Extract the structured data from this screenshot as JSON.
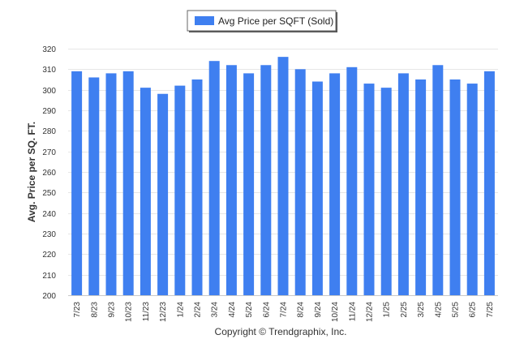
{
  "chart_data": {
    "type": "bar",
    "title": "",
    "xlabel": "",
    "ylabel": "Avg. Price per SQ. FT.",
    "ylim": [
      200,
      320
    ],
    "ytick_step": 10,
    "grid": true,
    "legend_position": "top-center",
    "bar_color": "#3f7ff0",
    "credit": "Copyright © Trendgraphix, Inc.",
    "categories": [
      "7/23",
      "8/23",
      "9/23",
      "10/23",
      "11/23",
      "12/23",
      "1/24",
      "2/24",
      "3/24",
      "4/24",
      "5/24",
      "6/24",
      "7/24",
      "8/24",
      "9/24",
      "10/24",
      "11/24",
      "12/24",
      "1/25",
      "2/25",
      "3/25",
      "4/25",
      "5/25",
      "6/25",
      "7/25"
    ],
    "series": [
      {
        "name": "Avg Price per SQFT (Sold)",
        "values": [
          309,
          306,
          308,
          309,
          301,
          298,
          302,
          305,
          314,
          312,
          308,
          312,
          316,
          310,
          304,
          308,
          311,
          303,
          301,
          308,
          305,
          312,
          305,
          303,
          309
        ]
      }
    ]
  }
}
